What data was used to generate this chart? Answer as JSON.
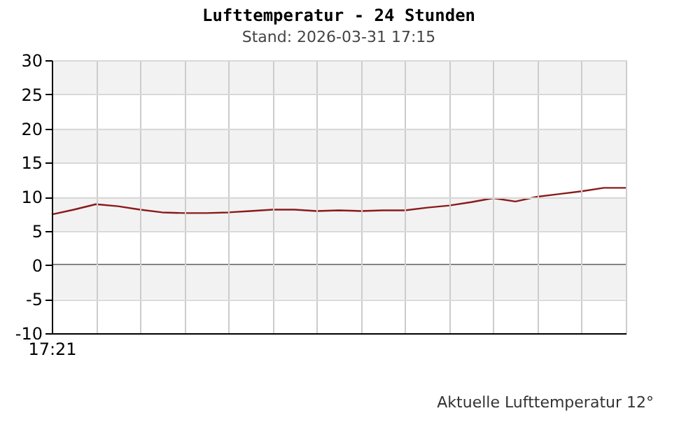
{
  "chart_data": {
    "type": "line",
    "title": "Lufttemperatur - 24 Stunden",
    "subtitle": "Stand: 2026-03-31 17:15",
    "annotations": [
      "Aktuelle Lufttemperatur 12°"
    ],
    "categories": [
      "17:21",
      null,
      null,
      null,
      null,
      null,
      null,
      null,
      null,
      null,
      null,
      null,
      null,
      null,
      null,
      null,
      null,
      null,
      null,
      null,
      null,
      null,
      null,
      null,
      null,
      null,
      null
    ],
    "series": [
      {
        "color": "#8b1a1a",
        "values": [
          7.4,
          8.1,
          8.9,
          8.6,
          8.1,
          7.7,
          7.6,
          7.6,
          7.7,
          7.9,
          8.1,
          8.1,
          7.9,
          8.0,
          7.9,
          8.0,
          8.0,
          8.4,
          8.7,
          9.2,
          9.8,
          9.3,
          10.0,
          10.4,
          10.8,
          11.3,
          11.3
        ]
      }
    ],
    "ylim": [
      -10,
      30
    ],
    "yticks": [
      -10,
      -5,
      0,
      5,
      10,
      15,
      20,
      25,
      30
    ],
    "grid": true,
    "marker": "none",
    "line_style": "solid",
    "ref_lines": [
      {
        "axis": "y",
        "value": 0,
        "color": "#000000"
      }
    ],
    "bands": [
      {
        "axis": "y",
        "from": 25,
        "to": 30,
        "color": "#f2f2f2"
      },
      {
        "axis": "y",
        "from": 15,
        "to": 20,
        "color": "#f2f2f2"
      },
      {
        "axis": "y",
        "from": 5,
        "to": 10,
        "color": "#f2f2f2"
      },
      {
        "axis": "y",
        "from": -5,
        "to": 0,
        "color": "#f2f2f2"
      }
    ]
  }
}
